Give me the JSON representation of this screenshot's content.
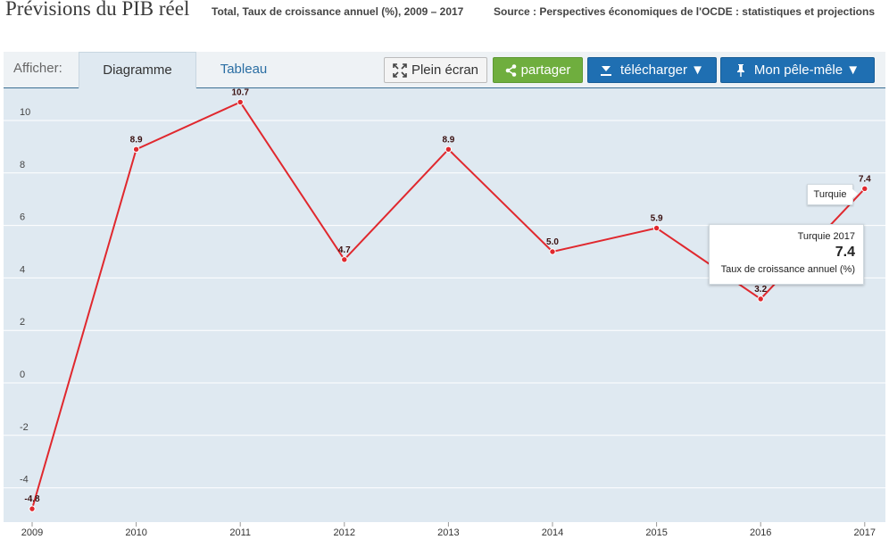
{
  "header": {
    "title": "Prévisions du PIB réel",
    "subtitle": "Total, Taux de croissance annuel (%), 2009 – 2017",
    "source": "Source : Perspectives économiques de l'OCDE : statistiques et projections"
  },
  "toolbar": {
    "show_label": "Afficher:",
    "tab_chart": "Diagramme",
    "tab_table": "Tableau",
    "fullscreen_label": "Plein écran",
    "share_label": "partager",
    "download_label": "télécharger ▼",
    "pinboard_label": "Mon pêle-mêle ▼",
    "colors": {
      "share": "#6fae3e",
      "primary": "#1f6fb2"
    },
    "icons": {
      "fullscreen": "expand-arrows-icon",
      "share": "share-icon",
      "download": "download-icon",
      "pinboard": "pin-icon"
    }
  },
  "tooltip": {
    "series_year": "Turquie 2017",
    "value": "7.4",
    "indicator": "Taux de croissance annuel (%)"
  },
  "country_label": "Turquie",
  "chart_data": {
    "type": "line",
    "x": [
      "2009",
      "2010",
      "2011",
      "2012",
      "2013",
      "2014",
      "2015",
      "2016",
      "2017"
    ],
    "series": [
      {
        "name": "Turquie",
        "values": [
          -4.8,
          8.9,
          10.7,
          4.7,
          8.9,
          5.0,
          5.9,
          3.2,
          7.4
        ],
        "labels": [
          "-4.8",
          "8.9",
          "10.7",
          "4.7",
          "8.9",
          "5.0",
          "5.9",
          "3.2",
          "7.4"
        ],
        "color": "#e0282e"
      }
    ],
    "y_ticks": [
      -4,
      -2,
      0,
      2,
      4,
      6,
      8,
      10
    ],
    "ylim": [
      -5.0,
      11.5
    ],
    "grid": true,
    "background": "#dfe9f1"
  }
}
